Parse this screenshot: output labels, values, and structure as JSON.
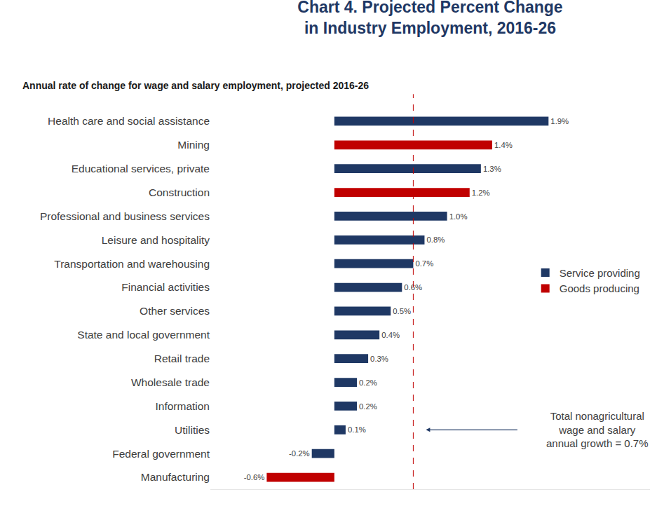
{
  "chart_data": {
    "type": "bar",
    "orientation": "horizontal",
    "title": "Chart 4. Projected Percent Change\nin Industry Employment, 2016-26",
    "subtitle": "Annual rate of change for wage and salary employment, projected 2016-26",
    "categories": [
      "Health care and social assistance",
      "Mining",
      "Educational services, private",
      "Construction",
      "Professional and business services",
      "Leisure and hospitality",
      "Transportation and warehousing",
      "Financial activities",
      "Other services",
      "State and local government",
      "Retail trade",
      "Wholesale trade",
      "Information",
      "Utilities",
      "Federal government",
      "Manufacturing"
    ],
    "series": [
      {
        "name": "Service providing",
        "color": "#1F3864",
        "values": [
          1.9,
          null,
          1.3,
          null,
          1.0,
          0.8,
          0.7,
          0.6,
          0.5,
          0.4,
          0.3,
          0.2,
          0.2,
          0.1,
          -0.2,
          null
        ],
        "value_labels": [
          "1.9%",
          null,
          "1.3%",
          null,
          "1.0%",
          "0.8%",
          "0.7%",
          "0.6%",
          "0.5%",
          "0.4%",
          "0.3%",
          "0.2%",
          "0.2%",
          "0.1%",
          "-0.2%",
          null
        ]
      },
      {
        "name": "Goods producing",
        "color": "#C00000",
        "values": [
          null,
          1.4,
          null,
          1.2,
          null,
          null,
          null,
          null,
          null,
          null,
          null,
          null,
          null,
          null,
          null,
          -0.6
        ],
        "value_labels": [
          null,
          "1.4%",
          null,
          "1.2%",
          null,
          null,
          null,
          null,
          null,
          null,
          null,
          null,
          null,
          null,
          null,
          "-0.6%"
        ]
      }
    ],
    "reference_line": {
      "value": 0.7,
      "color": "#C00000",
      "line_style": "dash",
      "annotation": [
        "Total nonagricultural",
        "wage and salary",
        "annual growth = 0.7%"
      ],
      "annotation_category": "Utilities"
    },
    "xlim": [
      -1.1,
      2.8
    ],
    "xticks": [],
    "tick_labels": "y",
    "grid": false,
    "data_labels": true,
    "legend": "right"
  }
}
